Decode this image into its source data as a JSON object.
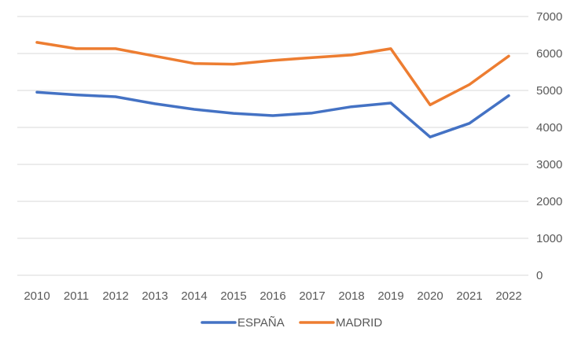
{
  "chart_data": {
    "type": "line",
    "categories": [
      "2010",
      "2011",
      "2012",
      "2013",
      "2014",
      "2015",
      "2016",
      "2017",
      "2018",
      "2019",
      "2020",
      "2021",
      "2022"
    ],
    "series": [
      {
        "name": "ESPAÑA",
        "color": "#4472c4",
        "values": [
          4950,
          4880,
          4830,
          4640,
          4490,
          4380,
          4320,
          4390,
          4560,
          4660,
          3740,
          4110,
          4860
        ]
      },
      {
        "name": "MADRID",
        "color": "#ed7d31",
        "values": [
          6300,
          6130,
          6130,
          5930,
          5730,
          5710,
          5810,
          5890,
          5960,
          6130,
          4610,
          5160,
          5930
        ]
      }
    ],
    "yticks": [
      "0",
      "1000",
      "2000",
      "3000",
      "4000",
      "5000",
      "6000",
      "7000"
    ],
    "ylim": [
      0,
      7000
    ],
    "y_axis_side": "right",
    "grid": true,
    "legend_position": "bottom",
    "title": "",
    "xlabel": "",
    "ylabel": ""
  }
}
